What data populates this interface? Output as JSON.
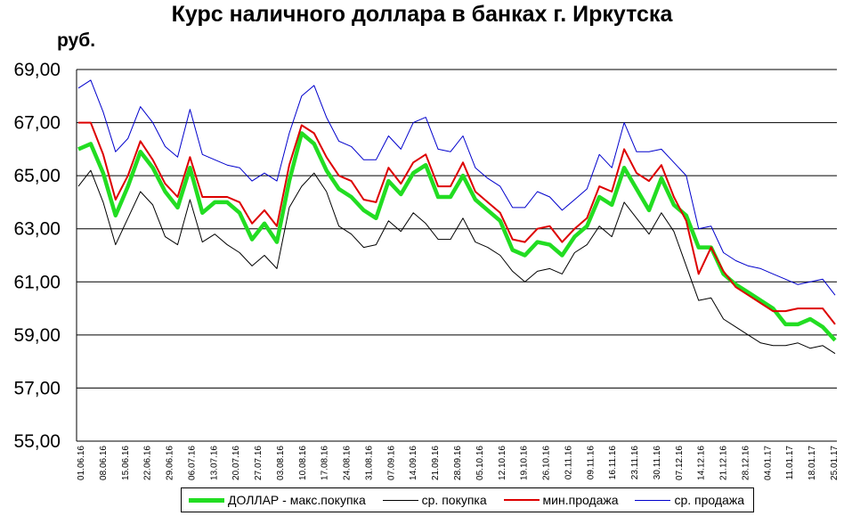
{
  "chart_data": {
    "type": "line",
    "title": "Курс наличного доллара в банках г. Иркутска",
    "ylabel": "руб.",
    "ylim": [
      55,
      69
    ],
    "yticks": [
      "55,00",
      "57,00",
      "59,00",
      "61,00",
      "63,00",
      "65,00",
      "67,00",
      "69,00"
    ],
    "xticks": [
      "01.06.16",
      "08.06.16",
      "15.06.16",
      "22.06.16",
      "29.06.16",
      "06.07.16",
      "13.07.16",
      "20.07.16",
      "27.07.16",
      "03.08.16",
      "10.08.16",
      "17.08.16",
      "24.08.16",
      "31.08.16",
      "07.09.16",
      "14.09.16",
      "21.09.16",
      "28.09.16",
      "05.10.16",
      "12.10.16",
      "19.10.16",
      "26.10.16",
      "02.11.16",
      "09.11.16",
      "16.11.16",
      "23.11.16",
      "30.11.16",
      "07.12.16",
      "14.12.16",
      "21.12.16",
      "28.12.16",
      "04.01.17",
      "11.01.17",
      "18.01.17",
      "25.01.17"
    ],
    "grid": true,
    "legend_position": "bottom",
    "series": [
      {
        "name": "ДОЛЛАР - макс.покупка",
        "color": "#22dd22",
        "values": [
          66.0,
          66.2,
          65.1,
          63.5,
          64.6,
          65.9,
          65.3,
          64.4,
          63.8,
          65.3,
          63.6,
          64.0,
          64.0,
          63.6,
          62.6,
          63.2,
          62.5,
          64.8,
          66.6,
          66.2,
          65.2,
          64.5,
          64.2,
          63.7,
          63.4,
          64.8,
          64.3,
          65.1,
          65.4,
          64.2,
          64.2,
          65.0,
          64.1,
          63.7,
          63.3,
          62.2,
          62.0,
          62.5,
          62.4,
          62.0,
          62.7,
          63.1,
          64.2,
          63.9,
          65.3,
          64.5,
          63.7,
          64.9,
          63.9,
          63.5,
          62.3,
          62.3,
          61.3,
          60.9,
          60.6,
          60.3,
          60.0,
          59.4,
          59.4,
          59.6,
          59.3,
          58.8
        ]
      },
      {
        "name": "ср. покупка",
        "color": "#000000",
        "values": [
          64.6,
          65.2,
          64.0,
          62.4,
          63.4,
          64.4,
          63.9,
          62.7,
          62.4,
          64.1,
          62.5,
          62.8,
          62.4,
          62.1,
          61.6,
          62.0,
          61.5,
          63.8,
          64.6,
          65.1,
          64.4,
          63.1,
          62.8,
          62.3,
          62.4,
          63.3,
          62.9,
          63.6,
          63.2,
          62.6,
          62.6,
          63.4,
          62.5,
          62.3,
          62.0,
          61.4,
          61.0,
          61.4,
          61.5,
          61.3,
          62.1,
          62.4,
          63.1,
          62.7,
          64.0,
          63.4,
          62.8,
          63.6,
          62.9,
          61.6,
          60.3,
          60.4,
          59.6,
          59.3,
          59.0,
          58.7,
          58.6,
          58.6,
          58.7,
          58.5,
          58.6,
          58.3
        ]
      },
      {
        "name": "мин.продажа",
        "color": "#dd0000",
        "values": [
          67.0,
          67.0,
          65.8,
          64.1,
          65.0,
          66.3,
          65.6,
          64.7,
          64.2,
          65.7,
          64.2,
          64.2,
          64.2,
          64.0,
          63.2,
          63.7,
          63.1,
          65.4,
          66.9,
          66.6,
          65.7,
          65.0,
          64.8,
          64.1,
          64.0,
          65.3,
          64.7,
          65.5,
          65.8,
          64.6,
          64.6,
          65.5,
          64.4,
          64.0,
          63.6,
          62.6,
          62.5,
          63.0,
          63.1,
          62.5,
          63.0,
          63.4,
          64.6,
          64.4,
          66.0,
          65.1,
          64.8,
          65.4,
          64.2,
          63.3,
          61.3,
          62.3,
          61.4,
          60.8,
          60.5,
          60.2,
          59.9,
          59.9,
          60.0,
          60.0,
          60.0,
          59.4
        ]
      },
      {
        "name": "ср. продажа",
        "color": "#0000cc",
        "values": [
          68.3,
          68.6,
          67.4,
          65.9,
          66.4,
          67.6,
          67.0,
          66.1,
          65.7,
          67.5,
          65.8,
          65.6,
          65.4,
          65.3,
          64.8,
          65.1,
          64.8,
          66.6,
          68.0,
          68.4,
          67.2,
          66.3,
          66.1,
          65.6,
          65.6,
          66.5,
          66.0,
          67.0,
          67.2,
          66.0,
          65.9,
          66.5,
          65.3,
          64.9,
          64.6,
          63.8,
          63.8,
          64.4,
          64.2,
          63.7,
          64.1,
          64.5,
          65.8,
          65.3,
          67.0,
          65.9,
          65.9,
          66.0,
          65.5,
          65.0,
          63.0,
          63.1,
          62.1,
          61.8,
          61.6,
          61.5,
          61.3,
          61.1,
          60.9,
          61.0,
          61.1,
          60.5
        ]
      }
    ]
  }
}
